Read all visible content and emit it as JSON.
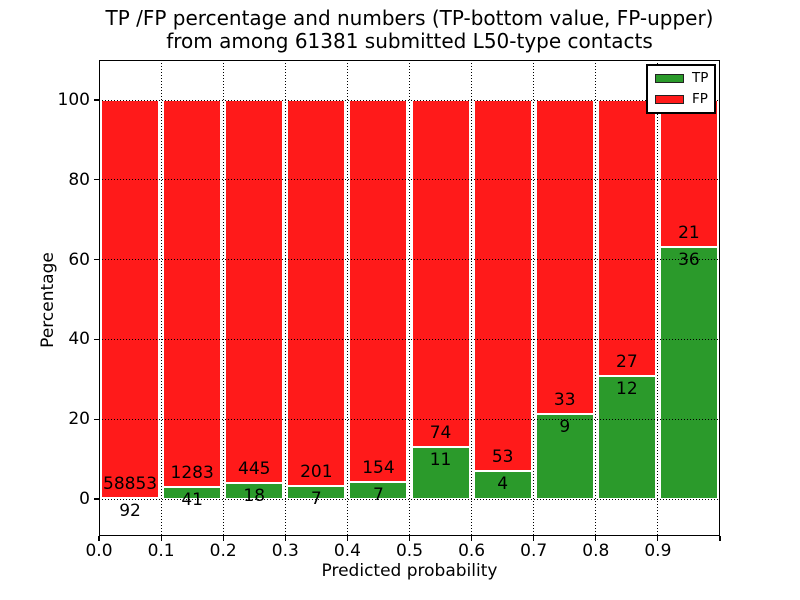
{
  "chart_data": {
    "type": "bar",
    "variant": "stacked-100-percent",
    "title_line1": "TP /FP percentage and numbers (TP-bottom value, FP-upper)",
    "title_line2": "from among 61381 submitted L50-type contacts",
    "total_submitted": 61381,
    "xlabel": "Predicted probability",
    "ylabel": "Percentage",
    "x_tick_labels": [
      "0.0",
      "0.1",
      "0.2",
      "0.3",
      "0.4",
      "0.5",
      "0.6",
      "0.7",
      "0.8",
      "0.9"
    ],
    "y_tick_labels": [
      "0",
      "20",
      "40",
      "60",
      "80",
      "100"
    ],
    "y_tick_values": [
      0,
      20,
      40,
      60,
      80,
      100
    ],
    "bins": [
      "0.0-0.1",
      "0.1-0.2",
      "0.2-0.3",
      "0.3-0.4",
      "0.4-0.5",
      "0.5-0.6",
      "0.6-0.7",
      "0.7-0.8",
      "0.8-0.9",
      "0.9-1.0"
    ],
    "series": [
      {
        "name": "TP",
        "stack_position": "bottom",
        "color": "#2b9a2b",
        "counts": [
          92,
          41,
          18,
          7,
          7,
          11,
          4,
          9,
          12,
          36
        ]
      },
      {
        "name": "FP",
        "stack_position": "top",
        "color": "#ff1a1a",
        "counts": [
          58853,
          1283,
          445,
          201,
          154,
          74,
          53,
          33,
          27,
          21
        ]
      }
    ],
    "tp_percent_of_bin": [
      0.16,
      3.1,
      3.89,
      3.37,
      4.35,
      12.94,
      7.02,
      21.43,
      30.77,
      63.16
    ],
    "legend": {
      "position": "upper-right",
      "entries": [
        {
          "label": "TP",
          "color": "#2b9a2b"
        },
        {
          "label": "FP",
          "color": "#ff1a1a"
        }
      ]
    },
    "grid": {
      "linestyle": "dotted",
      "color": "#000000"
    },
    "axes": {
      "xlim": [
        0.0,
        1.0
      ],
      "ylim_labeled": [
        0,
        100
      ],
      "background": "#ffffff",
      "spine_color": "#000000"
    }
  }
}
